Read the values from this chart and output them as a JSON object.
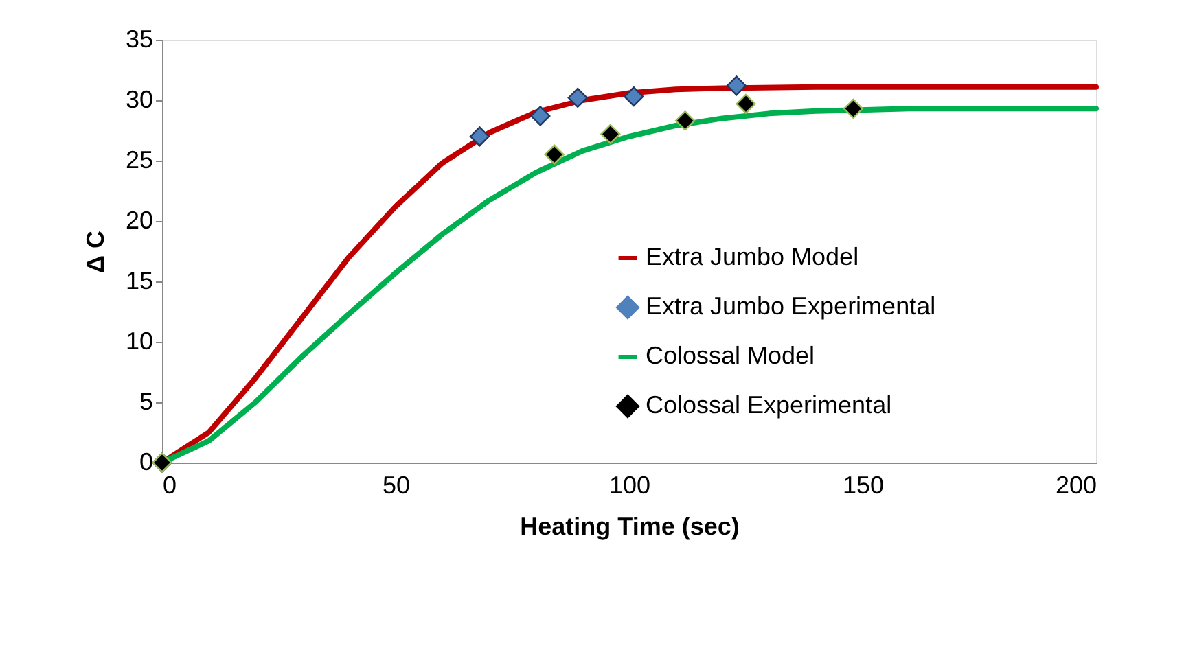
{
  "chart_data": {
    "type": "line",
    "xlabel": "Heating Time (sec)",
    "ylabel": "Δ C",
    "xlim": [
      0,
      200
    ],
    "xticks": [
      0,
      50,
      100,
      150,
      200
    ],
    "ylim": [
      0,
      35
    ],
    "yticks": [
      0,
      5,
      10,
      15,
      20,
      25,
      30,
      35
    ],
    "grid": false,
    "legend": "right",
    "series": [
      {
        "name": "Extra Jumbo Model",
        "color": "#c00000",
        "marker": "none",
        "line_style": "solid",
        "x": [
          0,
          10,
          20,
          30,
          40,
          50,
          60,
          70,
          80,
          90,
          100,
          110,
          120,
          140,
          160,
          200
        ],
        "values": [
          0,
          2.5,
          7,
          12,
          17,
          21.2,
          24.8,
          27.3,
          29,
          30,
          30.6,
          30.9,
          31,
          31.1,
          31.1,
          31.1
        ]
      },
      {
        "name": "Extra Jumbo Experimental",
        "type": "scatter",
        "color": "#4f81bd",
        "marker": "diamond",
        "x": [
          0,
          68,
          81,
          89,
          101,
          123
        ],
        "values": [
          0,
          27,
          28.7,
          30.2,
          30.3,
          31.2
        ]
      },
      {
        "name": "Colossal Model",
        "color": "#00b050",
        "marker": "none",
        "line_style": "solid",
        "x": [
          0,
          10,
          20,
          30,
          40,
          50,
          60,
          70,
          80,
          90,
          100,
          110,
          120,
          130,
          140,
          160,
          200
        ],
        "values": [
          0,
          1.8,
          5,
          8.8,
          12.3,
          15.7,
          18.9,
          21.7,
          24,
          25.8,
          27,
          27.9,
          28.5,
          28.9,
          29.1,
          29.3,
          29.3
        ]
      },
      {
        "name": "Colossal Experimental",
        "type": "scatter",
        "color": "#000000",
        "marker": "diamond",
        "x": [
          0,
          84,
          96,
          112,
          125,
          148
        ],
        "values": [
          0,
          25.5,
          27.2,
          28.3,
          29.7,
          29.3
        ]
      }
    ]
  }
}
